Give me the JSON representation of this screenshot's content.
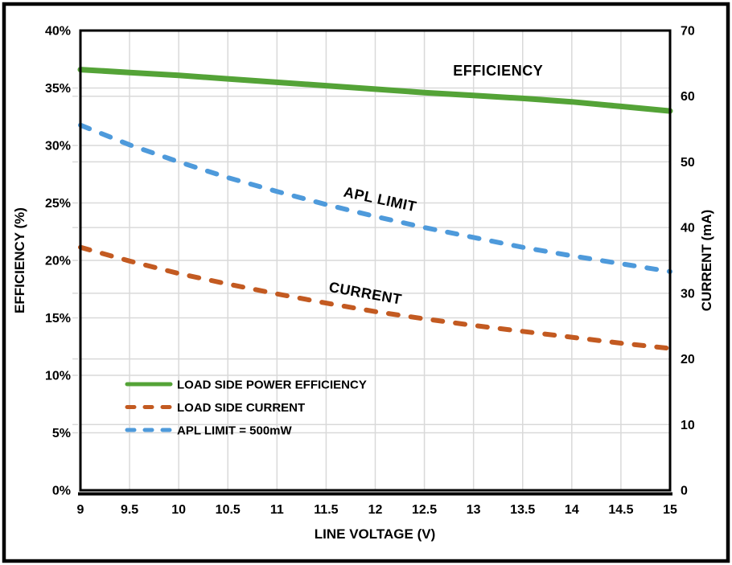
{
  "chart_data": {
    "type": "line",
    "title": "",
    "x_axis": {
      "title": "LINE VOLTAGE (V)",
      "min": 9,
      "max": 15,
      "step": 0.5,
      "tick_labels": [
        "9",
        "9.5",
        "10",
        "10.5",
        "11",
        "11.5",
        "12",
        "12.5",
        "13",
        "13.5",
        "14",
        "14.5",
        "15"
      ]
    },
    "y_left": {
      "title": "EFFICIENCY (%)",
      "min": 0,
      "max": 40,
      "step": 5,
      "tick_labels": [
        "0%",
        "5%",
        "10%",
        "15%",
        "20%",
        "25%",
        "30%",
        "35%",
        "40%"
      ]
    },
    "y_right": {
      "title": "CURRENT (mA)",
      "min": 0,
      "max": 70,
      "step": 10,
      "tick_labels": [
        "0",
        "10",
        "20",
        "30",
        "40",
        "50",
        "60",
        "70"
      ]
    },
    "grid": "major gridlines on, both y-axes plus x-axis, light gray",
    "x": [
      9,
      9.5,
      10,
      10.5,
      11,
      11.5,
      12,
      12.5,
      13,
      13.5,
      14,
      14.5,
      15
    ],
    "series": [
      {
        "name": "LOAD SIDE POWER EFFICIENCY",
        "axis": "left",
        "unit": "%",
        "color": "#54A337",
        "dashed": false,
        "values": [
          36.6,
          36.35,
          36.1,
          35.8,
          35.5,
          35.2,
          34.9,
          34.6,
          34.35,
          34.1,
          33.8,
          33.4,
          33.0
        ]
      },
      {
        "name": "LOAD SIDE CURRENT",
        "axis": "right",
        "unit": "mA",
        "color": "#C35A21",
        "dashed": true,
        "values": [
          37.0,
          34.9,
          33.0,
          31.4,
          29.9,
          28.5,
          27.2,
          26.1,
          25.1,
          24.2,
          23.3,
          22.4,
          21.6
        ]
      },
      {
        "name": "APL LIMIT = 500mW",
        "axis": "right",
        "unit": "mA",
        "color": "#4E9ADB",
        "dashed": true,
        "values": [
          55.6,
          52.6,
          50.0,
          47.6,
          45.5,
          43.5,
          41.7,
          40.0,
          38.5,
          37.0,
          35.7,
          34.5,
          33.3
        ]
      }
    ],
    "annotations": [
      {
        "text": "EFFICIENCY",
        "axis": "left",
        "v": 13.25,
        "value": 36.5,
        "rotate": 0
      },
      {
        "text": "APL LIMIT",
        "axis": "right",
        "v": 12.05,
        "value": 44.3,
        "rotate": 12
      },
      {
        "text": "CURRENT",
        "axis": "right",
        "v": 11.9,
        "value": 30.0,
        "rotate": 10
      }
    ],
    "legend": {
      "position": "inside plot, bottom-left",
      "items": [
        {
          "label": "LOAD SIDE POWER EFFICIENCY",
          "series": 0
        },
        {
          "label": "LOAD SIDE CURRENT",
          "series": 1
        },
        {
          "label": "APL LIMIT = 500mW",
          "series": 2
        }
      ]
    }
  },
  "colors": {
    "background": "#FFFFFF",
    "grid": "#D9D9D9",
    "axis": "#000000",
    "text": "#000000",
    "frame": "#000000"
  }
}
